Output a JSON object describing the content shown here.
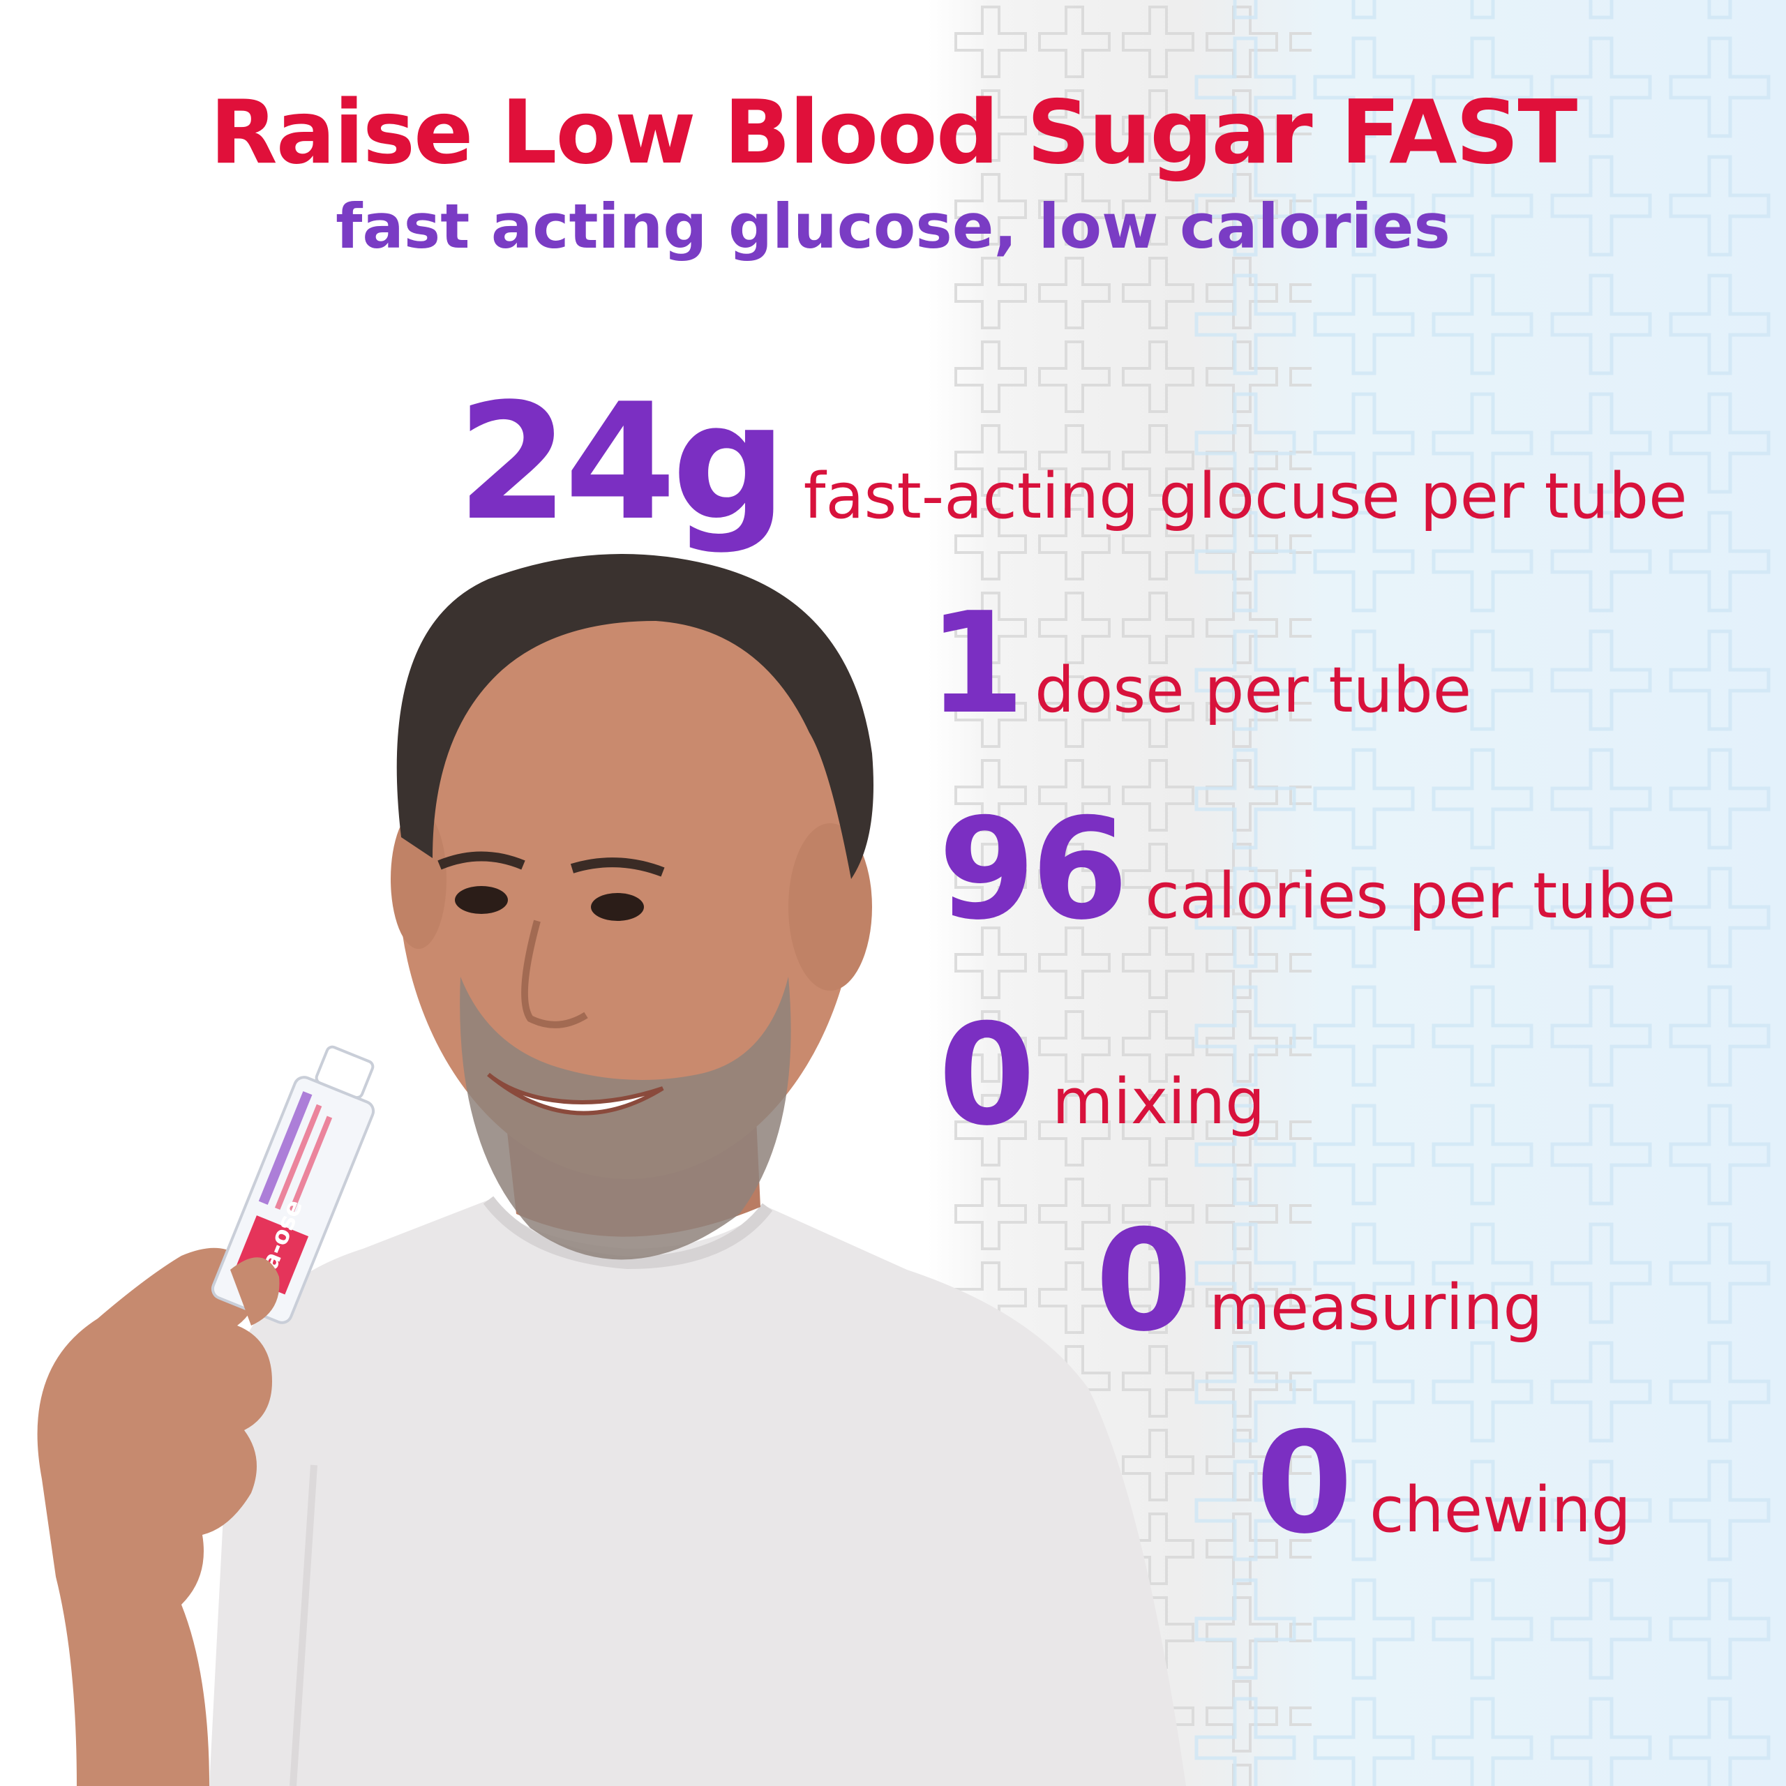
{
  "headline": "Raise Low Blood Sugar FAST",
  "subheadline": "fast acting glucose, low calories",
  "stats": [
    {
      "number": "24g",
      "text": "fast-acting glocuse per tube"
    },
    {
      "number": "1",
      "text": "dose per tube"
    },
    {
      "number": "96",
      "text": "calories per tube"
    },
    {
      "number": "0",
      "text": "mixing"
    },
    {
      "number": "0",
      "text": "measuring"
    },
    {
      "number": "0",
      "text": "chewing"
    }
  ],
  "product_label": "ta-ose",
  "colors": {
    "headline": "#e0103a",
    "subheadline": "#7a3cc4",
    "stat_number": "#7b2fc2",
    "stat_text": "#d8123c",
    "shirt": "#e9e7e8",
    "skin": "#c98a6e",
    "hair": "#3a322f"
  },
  "icons": {
    "background": "cross-pattern-icon"
  }
}
